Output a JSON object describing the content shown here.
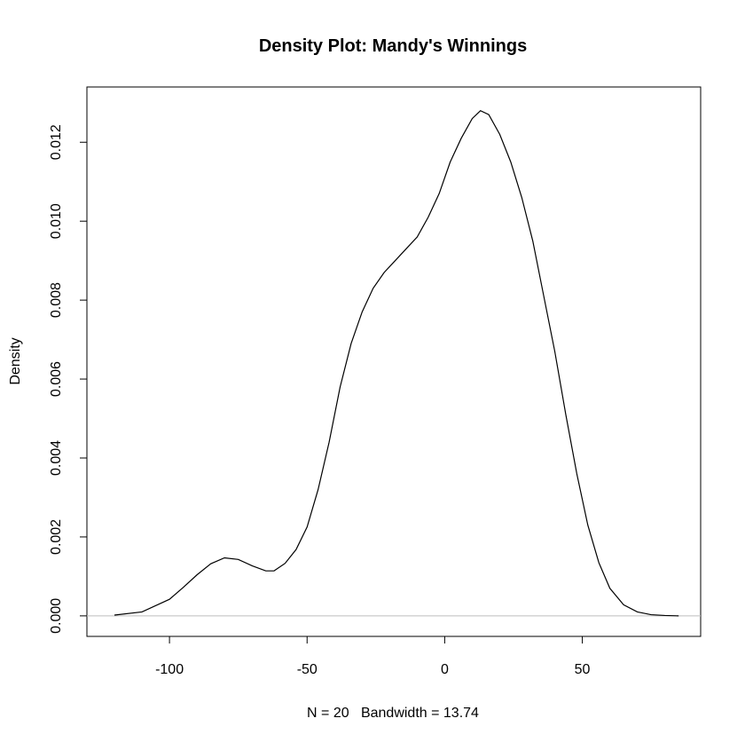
{
  "chart_data": {
    "type": "line",
    "title": "Density Plot: Mandy's Winnings",
    "xlabel": "N = 20   Bandwidth = 13.74",
    "ylabel": "Density",
    "xlim": [
      -130,
      93
    ],
    "ylim": [
      -0.00052,
      0.0134
    ],
    "x_ticks": [
      -100,
      -50,
      0,
      50
    ],
    "x_tick_labels": [
      "-100",
      "-50",
      "0",
      "50"
    ],
    "y_ticks": [
      0,
      0.002,
      0.004,
      0.006,
      0.008,
      0.01,
      0.012
    ],
    "y_tick_labels": [
      "0.000",
      "0.002",
      "0.004",
      "0.006",
      "0.008",
      "0.010",
      "0.012"
    ],
    "baseline": 0,
    "grid": false,
    "series": [
      {
        "x": [
          -120,
          -110,
          -100,
          -95,
          -90,
          -85,
          -80,
          -75,
          -70,
          -65,
          -62,
          -58,
          -54,
          -50,
          -46,
          -42,
          -38,
          -34,
          -30,
          -26,
          -22,
          -18,
          -14,
          -10,
          -6,
          -2,
          2,
          6,
          10,
          13,
          16,
          20,
          24,
          28,
          32,
          36,
          40,
          44,
          48,
          52,
          56,
          60,
          65,
          70,
          75,
          80,
          85
        ],
        "y": [
          2e-05,
          0.0001,
          0.00042,
          0.00072,
          0.00104,
          0.00132,
          0.00147,
          0.00143,
          0.00127,
          0.00114,
          0.00114,
          0.00133,
          0.00168,
          0.00225,
          0.0032,
          0.0044,
          0.0058,
          0.0069,
          0.0077,
          0.0083,
          0.0087,
          0.009,
          0.0093,
          0.0096,
          0.0101,
          0.0107,
          0.0115,
          0.0121,
          0.0126,
          0.0128,
          0.0127,
          0.0122,
          0.0115,
          0.0106,
          0.0095,
          0.0081,
          0.0067,
          0.0051,
          0.0036,
          0.0023,
          0.00135,
          0.0007,
          0.00028,
          0.0001,
          3e-05,
          1e-05,
          0.0
        ]
      }
    ]
  }
}
